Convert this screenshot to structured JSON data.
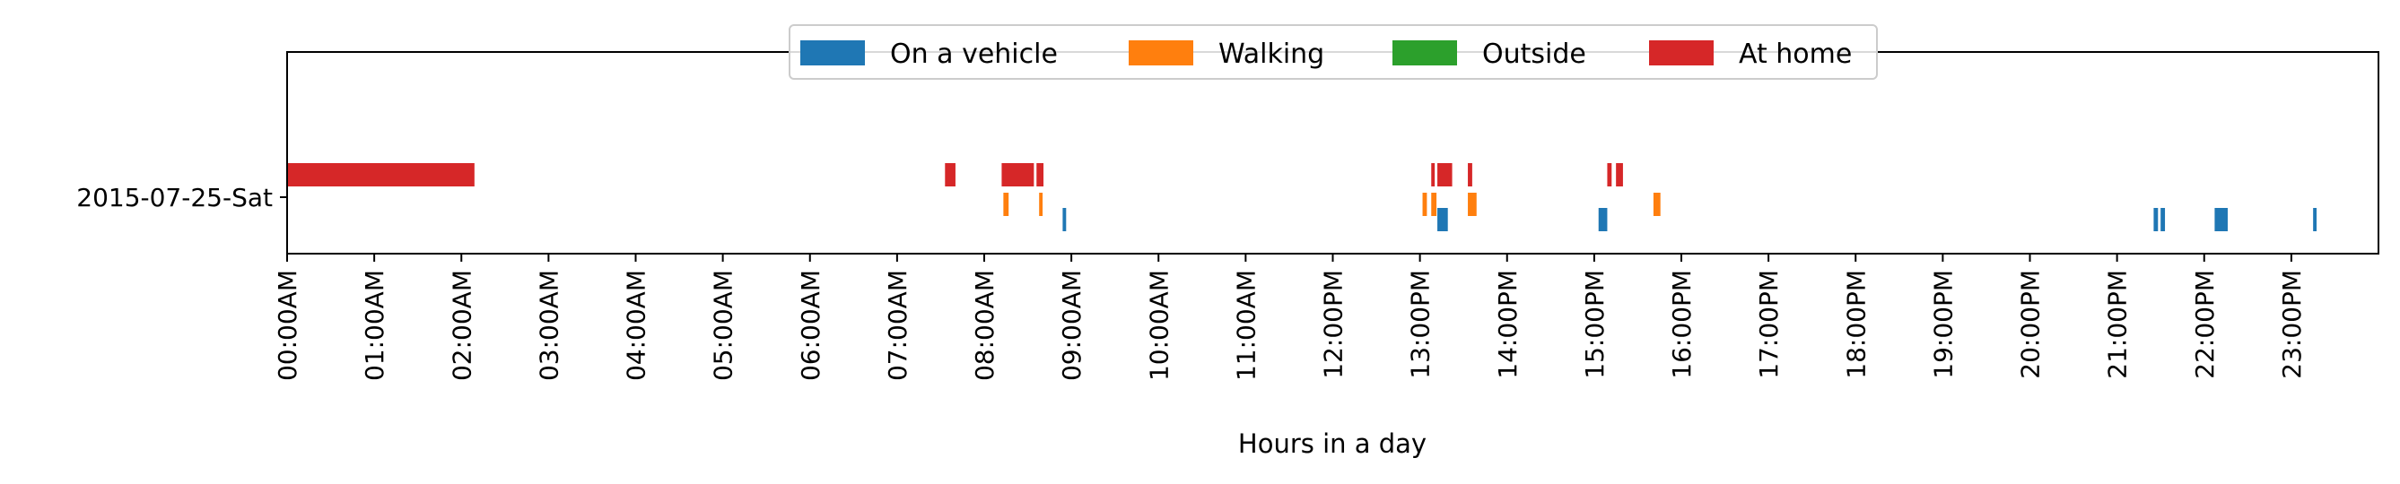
{
  "chart_data": {
    "type": "timeline",
    "xlabel": "Hours in a day",
    "xlim": [
      0,
      24
    ],
    "x_tick_labels": [
      "00:00AM",
      "01:00AM",
      "02:00AM",
      "03:00AM",
      "04:00AM",
      "05:00AM",
      "06:00AM",
      "07:00AM",
      "08:00AM",
      "09:00AM",
      "10:00AM",
      "11:00AM",
      "12:00PM",
      "13:00PM",
      "14:00PM",
      "15:00PM",
      "16:00PM",
      "17:00PM",
      "18:00PM",
      "19:00PM",
      "20:00PM",
      "21:00PM",
      "22:00PM",
      "23:00PM"
    ],
    "y_categories": [
      "2015-07-25-Sat"
    ],
    "legend_position": "top-center",
    "series": [
      {
        "name": "On a vehicle",
        "color": "#1f77b4",
        "intervals": [
          [
            8.9,
            8.94
          ],
          [
            13.2,
            13.32
          ],
          [
            15.05,
            15.15
          ],
          [
            21.42,
            21.47
          ],
          [
            21.5,
            21.55
          ],
          [
            22.12,
            22.27
          ],
          [
            23.25,
            23.29
          ]
        ]
      },
      {
        "name": "Walking",
        "color": "#ff7f0e",
        "intervals": [
          [
            8.22,
            8.28
          ],
          [
            8.63,
            8.67
          ],
          [
            13.03,
            13.08
          ],
          [
            13.13,
            13.19
          ],
          [
            13.55,
            13.65
          ],
          [
            15.68,
            15.76
          ]
        ]
      },
      {
        "name": "Outside",
        "color": "#2ca02c",
        "intervals": []
      },
      {
        "name": "At home",
        "color": "#d62728",
        "intervals": [
          [
            0.0,
            2.15
          ],
          [
            7.55,
            7.67
          ],
          [
            8.2,
            8.57
          ],
          [
            8.6,
            8.68
          ],
          [
            13.13,
            13.17
          ],
          [
            13.2,
            13.37
          ],
          [
            13.55,
            13.6
          ],
          [
            15.15,
            15.2
          ],
          [
            15.25,
            15.33
          ]
        ]
      }
    ]
  }
}
